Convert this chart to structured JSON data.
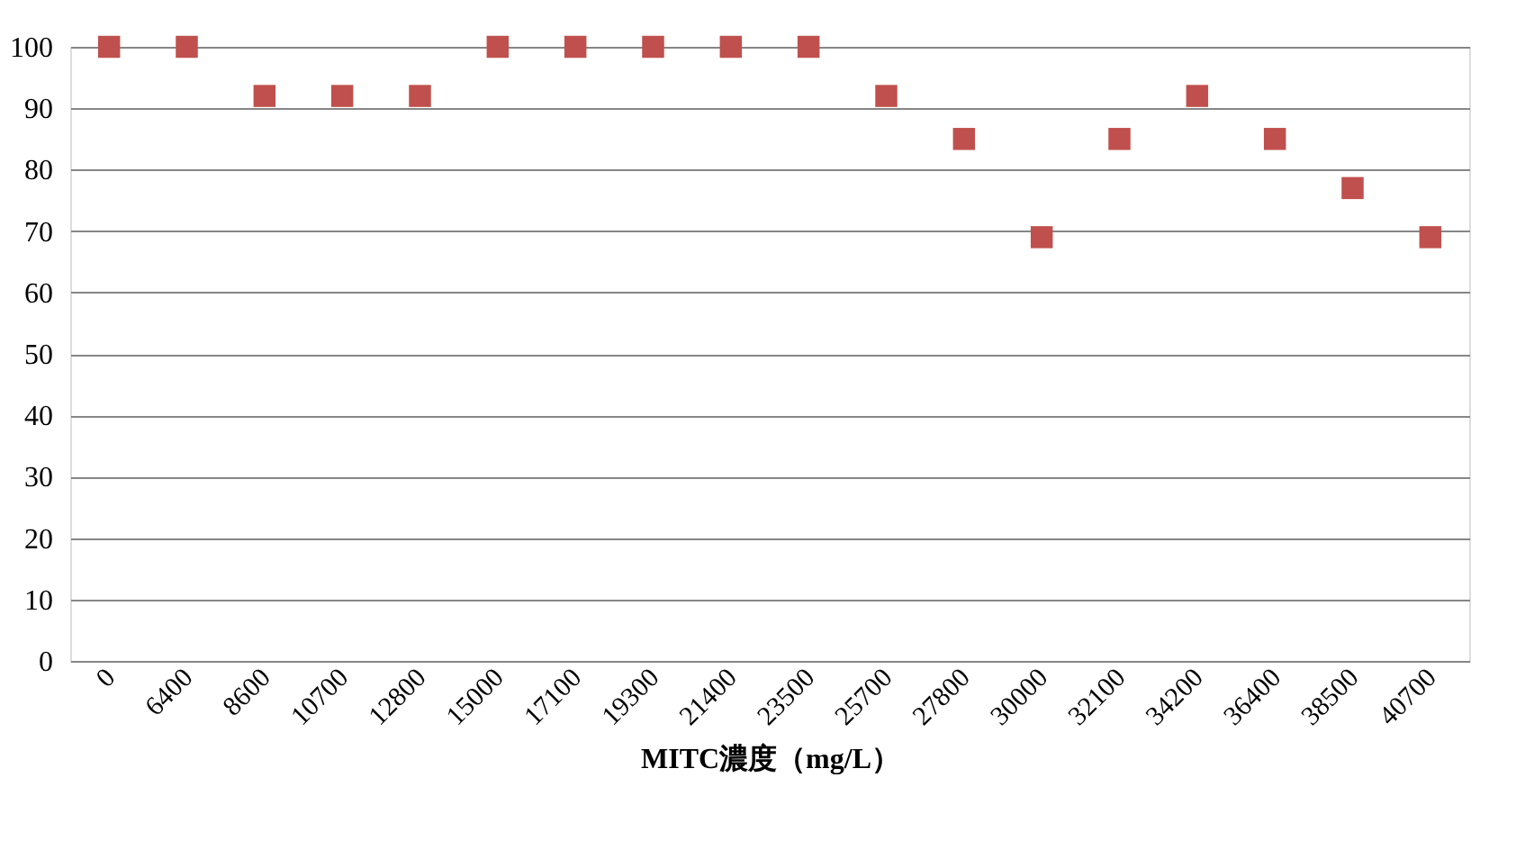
{
  "chart_data": {
    "type": "scatter",
    "xlabel": "MITC濃度（mg/L）",
    "categories": [
      "0",
      "6400",
      "8600",
      "10700",
      "12800",
      "15000",
      "17100",
      "19300",
      "21400",
      "23500",
      "25700",
      "27800",
      "30000",
      "32100",
      "34200",
      "36400",
      "38500",
      "40700"
    ],
    "series": [
      {
        "color": "#c0504d",
        "values": [
          100,
          100,
          92,
          92,
          92,
          100,
          100,
          100,
          100,
          100,
          92,
          85,
          69,
          85,
          92,
          85,
          77,
          69
        ]
      }
    ],
    "ylim": [
      0,
      100
    ],
    "yticks": [
      0,
      10,
      20,
      30,
      40,
      50,
      60,
      70,
      80,
      90,
      100
    ],
    "grid": "y",
    "marker": "square",
    "legend": false
  }
}
